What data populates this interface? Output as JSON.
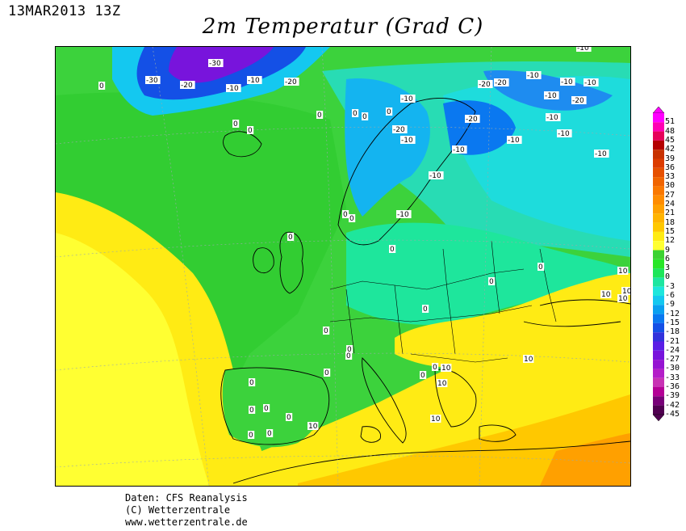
{
  "date_stamp": "13MAR2013 13Z",
  "title": "2m Temperatur (Grad C)",
  "credits": {
    "line1": "Daten: CFS Reanalysis",
    "line2": "(C) Wetterzentrale",
    "line3": "www.wetterzentrale.de"
  },
  "legend": {
    "levels": [
      "51",
      "48",
      "45",
      "42",
      "39",
      "36",
      "33",
      "30",
      "27",
      "24",
      "21",
      "18",
      "15",
      "12",
      "9",
      "6",
      "3",
      "0",
      "-3",
      "-6",
      "-9",
      "-12",
      "-15",
      "-18",
      "-21",
      "-24",
      "-27",
      "-30",
      "-33",
      "-36",
      "-39",
      "-42",
      "-45"
    ],
    "colors": [
      "#ff00ff",
      "#ff00b4",
      "#e6005a",
      "#b40000",
      "#c83200",
      "#dc3c00",
      "#e65000",
      "#f06400",
      "#fa7800",
      "#ff8c00",
      "#ffa000",
      "#ffb400",
      "#ffc800",
      "#ffeb14",
      "#ffff32",
      "#3cd232",
      "#28e628",
      "#1ee65a",
      "#1ee6a0",
      "#1ee6dc",
      "#14c8f0",
      "#0aa0f0",
      "#0a78f0",
      "#1450e6",
      "#3232dc",
      "#5a1ee6",
      "#7814dc",
      "#9614d2",
      "#b41ec8",
      "#c832b4",
      "#b40096",
      "#780078",
      "#500050"
    ]
  },
  "contour_labels": [
    "-30",
    "-30",
    "-20",
    "-10",
    "-10",
    "-20",
    "-20",
    "-20",
    "-10",
    "-10",
    "-10",
    "-10",
    "-20",
    "-10",
    "-10",
    "-10",
    "-20",
    "-10",
    "-10",
    "-10",
    "-10",
    "-10",
    "-10",
    "-10",
    "0",
    "0",
    "0",
    "0",
    "0",
    "0",
    "0",
    "0",
    "0",
    "0",
    "0",
    "0",
    "0",
    "0",
    "0",
    "0",
    "0",
    "0",
    "0",
    "0",
    "0",
    "0",
    "0",
    "0",
    "0",
    "0",
    "10",
    "10",
    "10",
    "10",
    "10",
    "10",
    "10",
    "10",
    "10",
    "-20"
  ]
}
